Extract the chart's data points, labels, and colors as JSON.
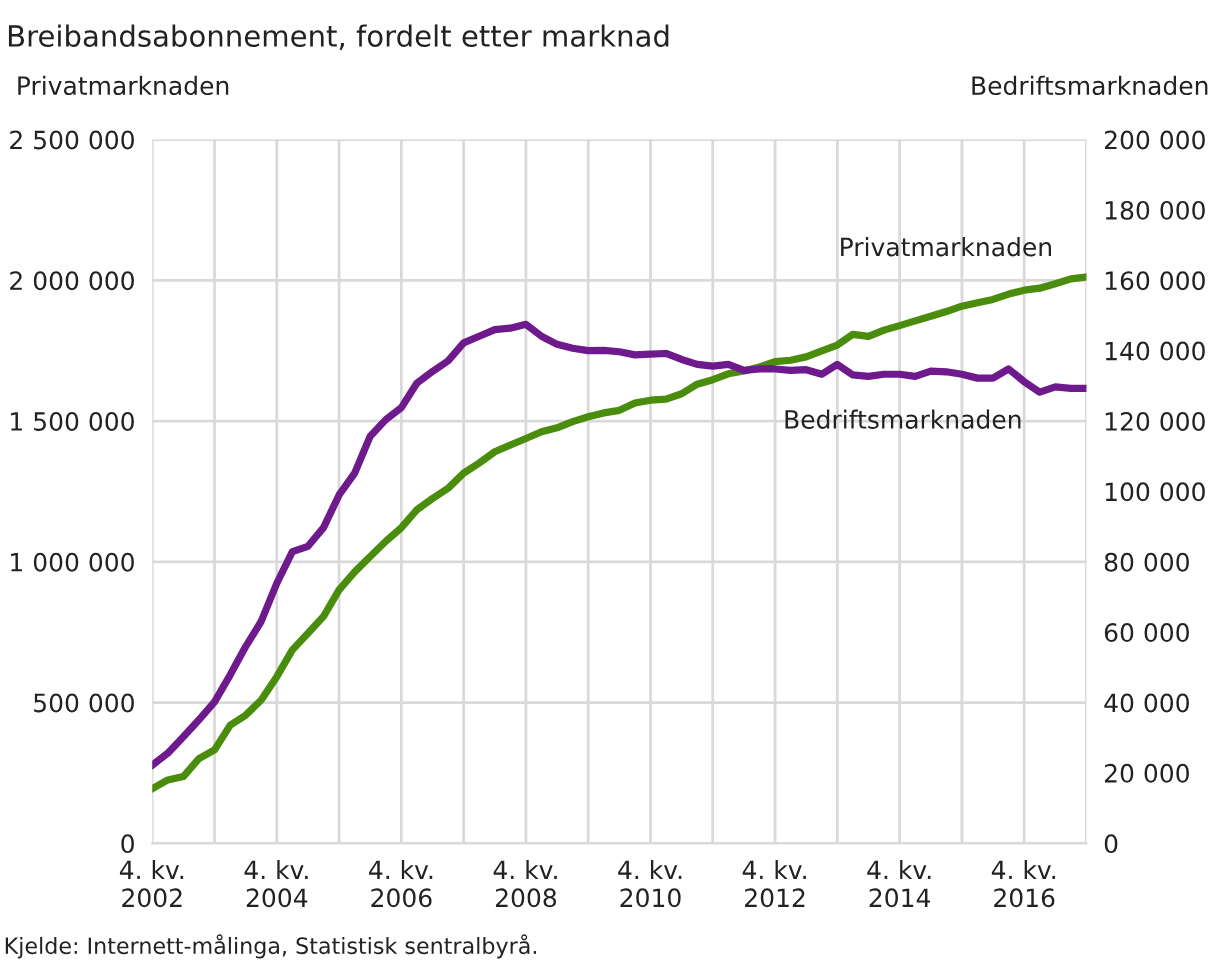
{
  "chart_data": {
    "type": "line",
    "title": "Breibandsabonnement, fordelt etter marknad",
    "ylabel": "Privatmarknaden",
    "y2label": "Bedriftsmarknaden",
    "annotations": [
      "Kjelde: Internett-målinga, Statistisk sentralbyrå."
    ],
    "categories": [
      "4. kv.\n2002",
      null,
      null,
      null,
      null,
      null,
      null,
      null,
      "4. kv.\n2004",
      null,
      null,
      null,
      null,
      null,
      null,
      null,
      "4. kv.\n2006",
      null,
      null,
      null,
      null,
      null,
      null,
      null,
      "4. kv.\n2008",
      null,
      null,
      null,
      null,
      null,
      null,
      null,
      "4. kv.\n2010",
      null,
      null,
      null,
      null,
      null,
      null,
      null,
      "4. kv.\n2012",
      null,
      null,
      null,
      null,
      null,
      null,
      null,
      "4. kv.\n2014",
      null,
      null,
      null,
      null,
      null,
      null,
      null,
      "4. kv.\n2016",
      null,
      null,
      null,
      null
    ],
    "series": [
      {
        "name": "Privatmarknaden",
        "color": "#4a8c0c",
        "values": [
          194000,
          225000,
          237000,
          301000,
          332000,
          419000,
          455000,
          509000,
          592000,
          687000,
          746000,
          806000,
          900000,
          964000,
          1019000,
          1073000,
          1121000,
          1185000,
          1225000,
          1261000,
          1315000,
          1351000,
          1391000,
          1415000,
          1438000,
          1462000,
          1476000,
          1498000,
          1515000,
          1529000,
          1538000,
          1564000,
          1574000,
          1578000,
          1597000,
          1631000,
          1647000,
          1668000,
          1678000,
          1692000,
          1711000,
          1716000,
          1728000,
          1749000,
          1770000,
          1808000,
          1801000,
          1823000,
          1839000,
          1856000,
          1872000,
          1889000,
          1908000,
          1920000,
          1932000,
          1951000,
          1965000,
          1972000,
          1988000,
          2005000,
          2012000
        ]
      },
      {
        "name": "Bedriftsmarknaden",
        "color": "#6e1a8c",
        "axis": "y2",
        "values": [
          22200,
          25600,
          30300,
          35100,
          40200,
          47800,
          55900,
          63100,
          73900,
          82900,
          84400,
          89700,
          99000,
          105200,
          115700,
          120400,
          123800,
          130800,
          134100,
          137100,
          142200,
          144100,
          146000,
          146400,
          147500,
          144100,
          141800,
          140700,
          140000,
          140100,
          139700,
          138800,
          139000,
          139200,
          137500,
          136100,
          135600,
          136100,
          134400,
          134800,
          134800,
          134400,
          134600,
          133300,
          136100,
          133100,
          132700,
          133300,
          133300,
          132700,
          134200,
          134000,
          133300,
          132200,
          132200,
          134800,
          131200,
          128200,
          129700,
          129300,
          129300
        ]
      }
    ],
    "ylim": [
      0,
      2500000
    ],
    "yticks": [
      0,
      {
        "value": 500000,
        "label": "500 000"
      },
      {
        "value": 1000000,
        "label": "1 000 000"
      },
      {
        "value": 1500000,
        "label": "1 500 000"
      },
      {
        "value": 2000000,
        "label": "2 000 000"
      },
      {
        "value": 2500000,
        "label": "2 500 000"
      }
    ],
    "y2lim": [
      0,
      200000
    ],
    "y2ticks": [
      0,
      {
        "value": 20000,
        "label": "20 000"
      },
      {
        "value": 40000,
        "label": "40 000"
      },
      {
        "value": 60000,
        "label": "60 000"
      },
      {
        "value": 80000,
        "label": "80 000"
      },
      {
        "value": 100000,
        "label": "100 000"
      },
      {
        "value": 120000,
        "label": "120 000"
      },
      {
        "value": 140000,
        "label": "140 000"
      },
      {
        "value": 160000,
        "label": "160 000"
      },
      {
        "value": 180000,
        "label": "180 000"
      },
      {
        "value": 200000,
        "label": "200 000"
      }
    ],
    "grid": true,
    "legend": false,
    "marker": "none",
    "line_style": "solid"
  }
}
